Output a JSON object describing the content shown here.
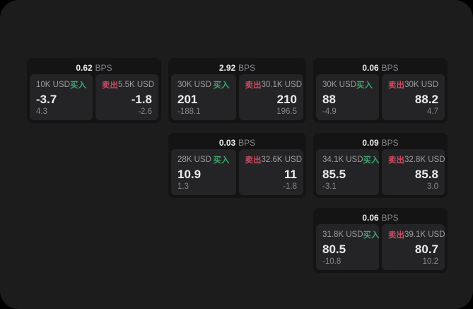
{
  "colors": {
    "window_bg": "#1c1c1c",
    "card_bg": "#141414",
    "panel_bg": "#242426",
    "buy_green": "#3fa56d",
    "sell_red": "#cf4b63"
  },
  "cards": [
    {
      "bps_value": "0.62",
      "bps_unit": "BPS",
      "buy": {
        "amount": "10K USD",
        "side_label": "买入",
        "price": "-3.7",
        "delta": "4.3"
      },
      "sell": {
        "side_label": "卖出",
        "amount": "5.5K USD",
        "price": "-1.8",
        "delta": "-2.6"
      }
    },
    {
      "bps_value": "2.92",
      "bps_unit": "BPS",
      "buy": {
        "amount": "30K USD",
        "side_label": "买入",
        "price": "201",
        "delta": "-188.1"
      },
      "sell": {
        "side_label": "卖出",
        "amount": "30.1K USD",
        "price": "210",
        "delta": "196.5"
      }
    },
    {
      "bps_value": "0.06",
      "bps_unit": "BPS",
      "buy": {
        "amount": "30K USD",
        "side_label": "买入",
        "price": "88",
        "delta": "-4.9"
      },
      "sell": {
        "side_label": "卖出",
        "amount": "30K USD",
        "price": "88.2",
        "delta": "4.7"
      }
    },
    {
      "bps_value": "0.03",
      "bps_unit": "BPS",
      "buy": {
        "amount": "28K USD",
        "side_label": "买入",
        "price": "10.9",
        "delta": "1.3"
      },
      "sell": {
        "side_label": "卖出",
        "amount": "32.6K USD",
        "price": "11",
        "delta": "-1.8"
      }
    },
    {
      "bps_value": "0.09",
      "bps_unit": "BPS",
      "buy": {
        "amount": "34.1K USD",
        "side_label": "买入",
        "price": "85.5",
        "delta": "-3.1"
      },
      "sell": {
        "side_label": "卖出",
        "amount": "32.8K USD",
        "price": "85.8",
        "delta": "3.0"
      }
    },
    {
      "bps_value": "0.06",
      "bps_unit": "BPS",
      "buy": {
        "amount": "31.8K USD",
        "side_label": "买入",
        "price": "80.5",
        "delta": "-10.8"
      },
      "sell": {
        "side_label": "卖出",
        "amount": "39.1K USD",
        "price": "80.7",
        "delta": "10.2"
      }
    }
  ]
}
